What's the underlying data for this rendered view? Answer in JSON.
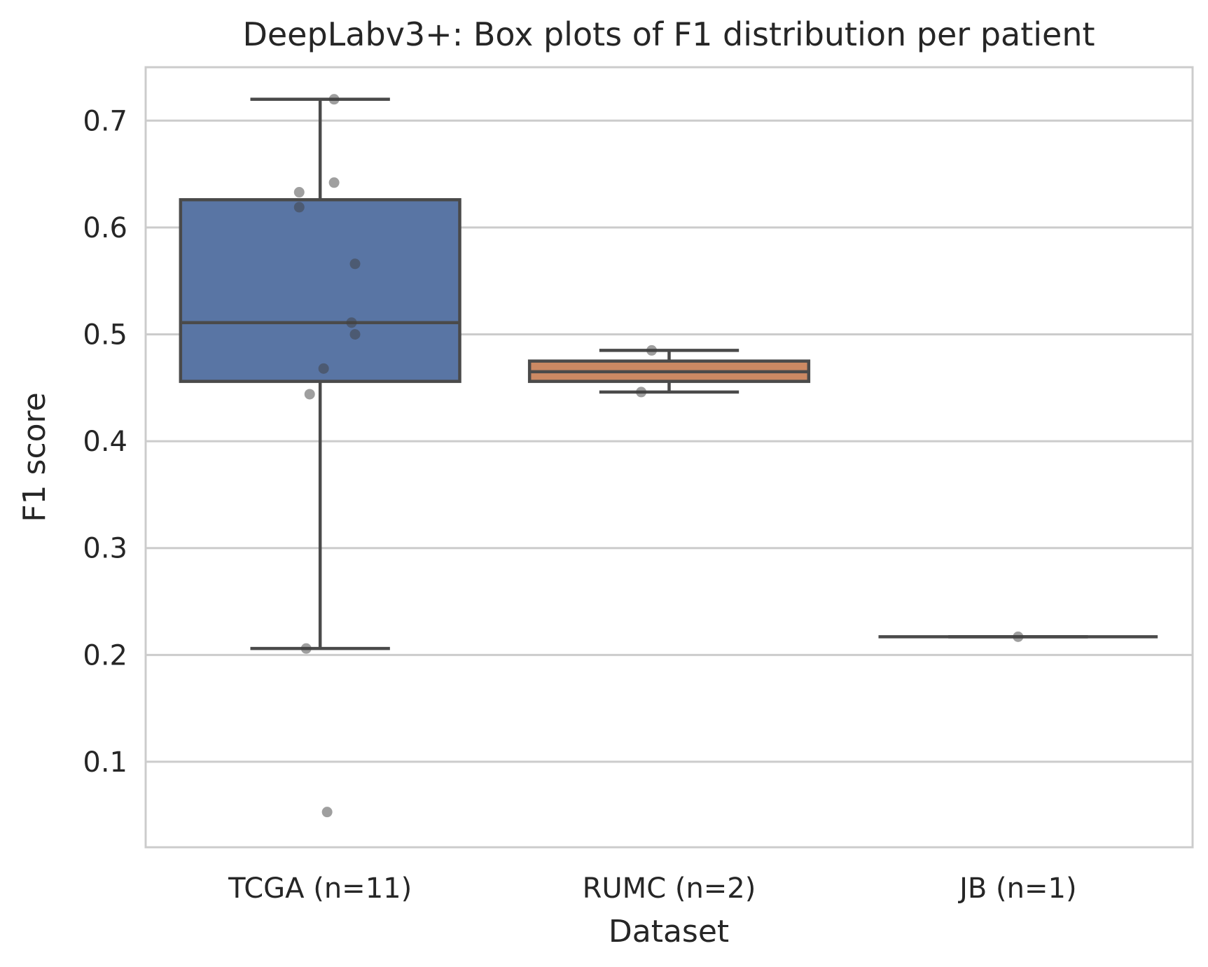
{
  "chart_data": {
    "type": "box",
    "title": "DeepLabv3+: Box plots of F1 distribution per patient",
    "xlabel": "Dataset",
    "ylabel": "F1 score",
    "ylim": [
      0.02,
      0.75
    ],
    "yticks": [
      {
        "value": 0.1,
        "label": "0.1"
      },
      {
        "value": 0.2,
        "label": "0.2"
      },
      {
        "value": 0.3,
        "label": "0.3"
      },
      {
        "value": 0.4,
        "label": "0.4"
      },
      {
        "value": 0.5,
        "label": "0.5"
      },
      {
        "value": 0.6,
        "label": "0.6"
      },
      {
        "value": 0.7,
        "label": "0.7"
      }
    ],
    "grid": true,
    "categories": [
      "TCGA (n=11)",
      "RUMC (n=2)",
      "JB (n=1)"
    ],
    "boxes": [
      {
        "category": "TCGA (n=11)",
        "color": "#5975a4",
        "whisker_low": 0.206,
        "q1": 0.456,
        "median": 0.511,
        "q3": 0.626,
        "whisker_high": 0.72,
        "points": [
          {
            "offset": 0.04,
            "value": 0.72
          },
          {
            "offset": 0.04,
            "value": 0.642
          },
          {
            "offset": -0.06,
            "value": 0.633
          },
          {
            "offset": -0.06,
            "value": 0.619
          },
          {
            "offset": 0.1,
            "value": 0.566
          },
          {
            "offset": 0.09,
            "value": 0.511
          },
          {
            "offset": 0.1,
            "value": 0.5
          },
          {
            "offset": 0.01,
            "value": 0.468
          },
          {
            "offset": -0.03,
            "value": 0.444
          },
          {
            "offset": -0.04,
            "value": 0.206
          },
          {
            "offset": 0.02,
            "value": 0.053
          }
        ]
      },
      {
        "category": "RUMC (n=2)",
        "color": "#cc8963",
        "whisker_low": 0.446,
        "q1": 0.456,
        "median": 0.465,
        "q3": 0.475,
        "whisker_high": 0.485,
        "points": [
          {
            "offset": -0.05,
            "value": 0.485
          },
          {
            "offset": -0.08,
            "value": 0.446
          }
        ]
      },
      {
        "category": "JB (n=1)",
        "color": "#5f9e6e",
        "whisker_low": 0.217,
        "q1": 0.217,
        "median": 0.217,
        "q3": 0.217,
        "whisker_high": 0.217,
        "points": [
          {
            "offset": 0.0,
            "value": 0.217
          }
        ]
      }
    ]
  }
}
